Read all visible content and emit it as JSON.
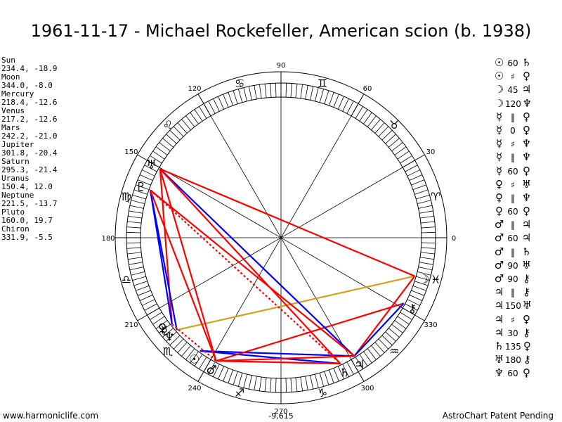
{
  "title": "1961-11-17 - Michael Rockefeller, American scion (b. 1938)",
  "planets": [
    {
      "name": "Sun",
      "coords": "234.4, -18.9",
      "glyph": "☉",
      "label": " ",
      "color": "#000000"
    },
    {
      "name": "Moon",
      "coords": "344.0, -8.0",
      "glyph": "☽",
      "label": "",
      "color": "#000000"
    },
    {
      "name": "Mercury",
      "coords": "218.4, -12.6",
      "glyph": "☿",
      "label": "",
      "color": "#000000"
    },
    {
      "name": "Venus",
      "coords": "217.2, -12.6",
      "glyph": "♀",
      "label": "",
      "color": "#000000"
    },
    {
      "name": "Mars",
      "coords": "242.2, -21.0",
      "glyph": "♂",
      "label": "",
      "color": "#000000"
    },
    {
      "name": "Jupiter",
      "coords": "301.8, -20.4",
      "glyph": "♃",
      "label": "",
      "color": "#000000"
    },
    {
      "name": "Saturn",
      "coords": "295.3, -21.4",
      "glyph": "♄",
      "label": "",
      "color": "#000000"
    },
    {
      "name": "Uranus",
      "coords": "150.4, 12.0",
      "glyph": "♅",
      "label": "",
      "color": "#000000"
    },
    {
      "name": "Neptune",
      "coords": "221.5, -13.7",
      "glyph": "♆",
      "label": "",
      "color": "#000000"
    },
    {
      "name": "Pluto",
      "coords": "160.0, 19.7",
      "glyph": "♇",
      "label": "",
      "color": "#000000"
    },
    {
      "name": "Chiron",
      "coords": "331.9, -5.5",
      "glyph": "⚷",
      "label": "",
      "color": "#000000"
    }
  ],
  "aspects": [
    {
      "p1": "☉",
      "value": "60",
      "p2": "♄"
    },
    {
      "p1": "☉",
      "value": "♯",
      "p2": "♀"
    },
    {
      "p1": "☽",
      "value": "45",
      "p2": "♃"
    },
    {
      "p1": "☽",
      "value": "120",
      "p2": "♆"
    },
    {
      "p1": "☿",
      "value": "‖",
      "p2": "♀"
    },
    {
      "p1": "☿",
      "value": "0",
      "p2": "♀"
    },
    {
      "p1": "☿",
      "value": "♯",
      "p2": "♆"
    },
    {
      "p1": "☿",
      "value": "‖",
      "p2": "♆"
    },
    {
      "p1": "☿",
      "value": "60",
      "p2": "♀"
    },
    {
      "p1": "♀",
      "value": "♯",
      "p2": "♅"
    },
    {
      "p1": "♀",
      "value": "‖",
      "p2": "♆"
    },
    {
      "p1": "♀",
      "value": "60",
      "p2": "♀"
    },
    {
      "p1": "♂",
      "value": "‖",
      "p2": "♃"
    },
    {
      "p1": "♂",
      "value": "60",
      "p2": "♃"
    },
    {
      "p1": "♂",
      "value": "‖",
      "p2": "♄"
    },
    {
      "p1": "♂",
      "value": "90",
      "p2": "♅"
    },
    {
      "p1": "♂",
      "value": "90",
      "p2": "⚷"
    },
    {
      "p1": "♃",
      "value": "‖",
      "p2": "⚷"
    },
    {
      "p1": "♃",
      "value": "150",
      "p2": "♅"
    },
    {
      "p1": "♃",
      "value": "♯",
      "p2": "♀"
    },
    {
      "p1": "♃",
      "value": "30",
      "p2": "⚷"
    },
    {
      "p1": "♄",
      "value": "135",
      "p2": "♀"
    },
    {
      "p1": "♅",
      "value": "180",
      "p2": "⚷"
    },
    {
      "p1": "♆",
      "value": "60",
      "p2": "♀"
    }
  ],
  "wheel": {
    "degree_labels": [
      "0",
      "30",
      "60",
      "90",
      "120",
      "150",
      "180",
      "210",
      "240",
      "270",
      "300",
      "330"
    ],
    "bottom_value": "-9,615",
    "signs": [
      {
        "glyph": "♈",
        "deg": 15
      },
      {
        "glyph": "♉",
        "deg": 45
      },
      {
        "glyph": "♊",
        "deg": 75
      },
      {
        "glyph": "♋",
        "deg": 105
      },
      {
        "glyph": "♌",
        "deg": 135
      },
      {
        "glyph": "♍",
        "deg": 165
      },
      {
        "glyph": "♎",
        "deg": 195
      },
      {
        "glyph": "♏",
        "deg": 225
      },
      {
        "glyph": "♐",
        "deg": 255
      },
      {
        "glyph": "♑",
        "deg": 285
      },
      {
        "glyph": "♒",
        "deg": 315
      },
      {
        "glyph": "♓",
        "deg": 345
      }
    ],
    "aspect_lines": [
      {
        "from": "Sun",
        "to": "Saturn",
        "color": "#0000ff",
        "style": "solid"
      },
      {
        "from": "Sun",
        "to": "Jupiter",
        "color": "#0000ff",
        "style": "solid"
      },
      {
        "from": "Mars",
        "to": "Jupiter",
        "color": "#ff0000",
        "style": "solid"
      },
      {
        "from": "Moon",
        "to": "Neptune",
        "color": "#d4a017",
        "style": "solid"
      },
      {
        "from": "Moon",
        "to": "Jupiter",
        "color": "#ff0000",
        "style": "solid"
      },
      {
        "from": "Chiron",
        "to": "Mars",
        "color": "#ff0000",
        "style": "solid"
      },
      {
        "from": "Chiron",
        "to": "Jupiter",
        "color": "#0000ff",
        "style": "solid"
      },
      {
        "from": "Uranus",
        "to": "Moon",
        "color": "#ff0000",
        "style": "solid"
      },
      {
        "from": "Uranus",
        "to": "Jupiter",
        "color": "#0000ff",
        "style": "solid"
      },
      {
        "from": "Uranus",
        "to": "Saturn",
        "color": "#ff0000",
        "style": "solid"
      },
      {
        "from": "Uranus",
        "to": "Mars",
        "color": "#ff0000",
        "style": "solid"
      },
      {
        "from": "Uranus",
        "to": "Mercury",
        "color": "#ff0000",
        "style": "solid"
      },
      {
        "from": "Pluto",
        "to": "Saturn",
        "color": "#ff0000",
        "style": "dotted"
      },
      {
        "from": "Pluto",
        "to": "Jupiter",
        "color": "#ff0000",
        "style": "solid"
      },
      {
        "from": "Pluto",
        "to": "Mercury",
        "color": "#0000ff",
        "style": "solid"
      },
      {
        "from": "Pluto",
        "to": "Neptune",
        "color": "#0000ff",
        "style": "solid"
      },
      {
        "from": "Pluto",
        "to": "Mars",
        "color": "#ff0000",
        "style": "solid"
      },
      {
        "from": "Saturn",
        "to": "Mars",
        "color": "#d4a017",
        "style": "dotted"
      },
      {
        "from": "Saturn",
        "to": "Mars",
        "color": "#ff0000",
        "style": "solid"
      },
      {
        "from": "Mercury",
        "to": "Mars",
        "color": "#ff0000",
        "style": "dotted"
      }
    ]
  },
  "footer": {
    "left": "www.harmoniclife.com",
    "right": "AstroChart Patent Pending"
  }
}
